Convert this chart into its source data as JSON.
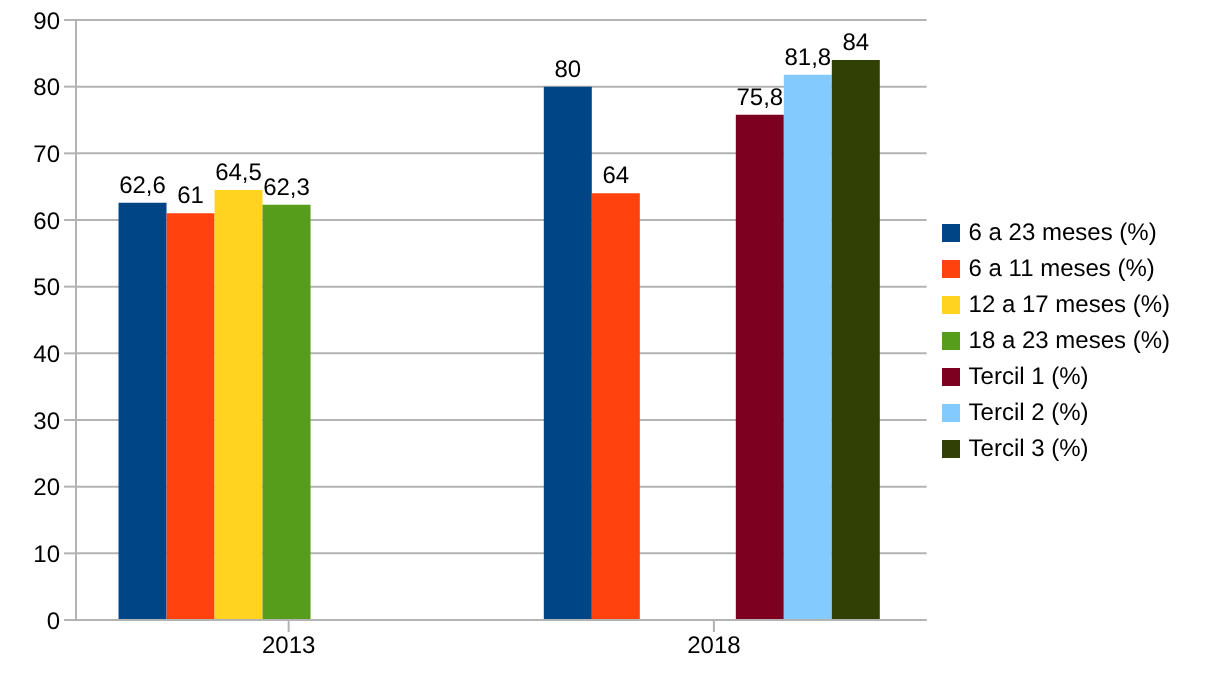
{
  "chart_data": {
    "type": "bar",
    "categories": [
      "2013",
      "2018"
    ],
    "series": [
      {
        "name": "6 a 23 meses (%)",
        "color": "#004586",
        "values": [
          62.6,
          80
        ],
        "value_labels": [
          "62,6",
          "80"
        ]
      },
      {
        "name": "6 a 11 meses (%)",
        "color": "#ff420e",
        "values": [
          61,
          64
        ],
        "value_labels": [
          "61",
          "64"
        ]
      },
      {
        "name": "12 a 17 meses (%)",
        "color": "#ffd320",
        "values": [
          64.5,
          null
        ],
        "value_labels": [
          "64,5",
          null
        ]
      },
      {
        "name": "18 a 23 meses (%)",
        "color": "#579d1c",
        "values": [
          62.3,
          null
        ],
        "value_labels": [
          "62,3",
          null
        ]
      },
      {
        "name": "Tercil 1 (%)",
        "color": "#7e0021",
        "values": [
          null,
          75.8
        ],
        "value_labels": [
          null,
          "75,8"
        ]
      },
      {
        "name": "Tercil 2 (%)",
        "color": "#83caff",
        "values": [
          null,
          81.8
        ],
        "value_labels": [
          null,
          "81,8"
        ]
      },
      {
        "name": "Tercil 3 (%)",
        "color": "#314004",
        "values": [
          null,
          84
        ],
        "value_labels": [
          null,
          "84"
        ]
      }
    ],
    "ylim": [
      0,
      90
    ],
    "yticks": [
      0,
      10,
      20,
      30,
      40,
      50,
      60,
      70,
      80,
      90
    ],
    "grid": "y",
    "legend": "right"
  }
}
